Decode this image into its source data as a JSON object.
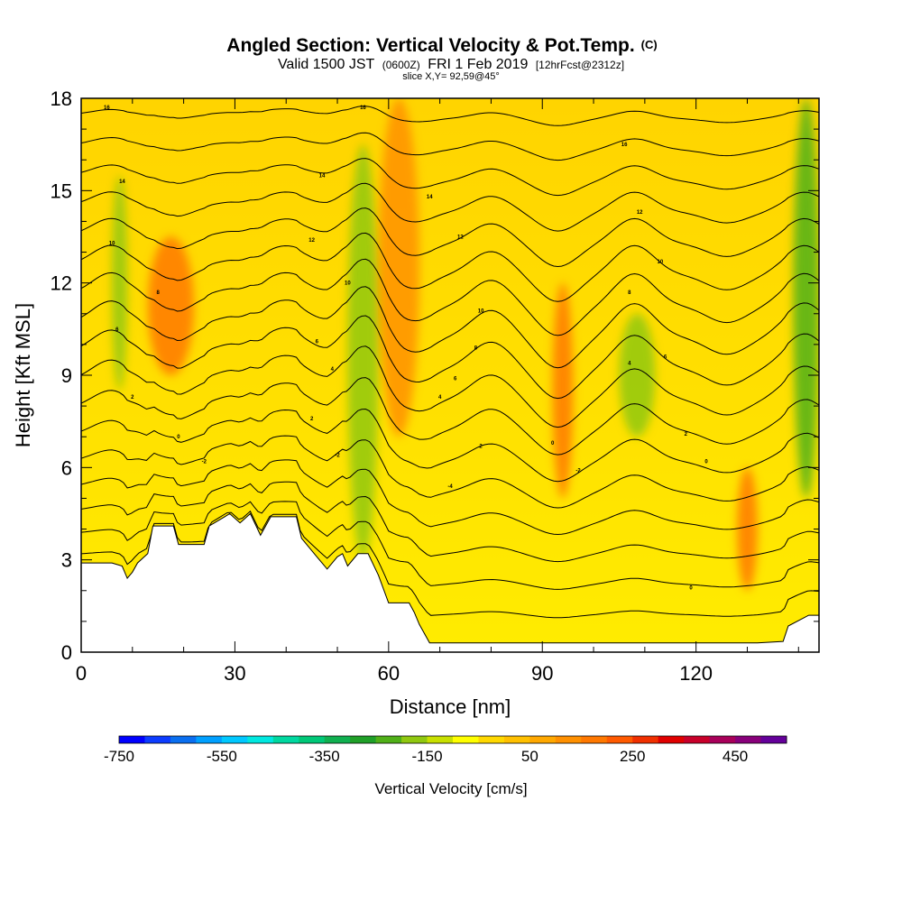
{
  "chart_data": {
    "type": "heatmap",
    "title": {
      "main": "Angled Section: Vertical Velocity & Pot.Temp.",
      "unit": "(C)",
      "valid_prefix": "Valid 1500 JST",
      "valid_zulu": "(0600Z)",
      "valid_date": "FRI 1 Feb 2019",
      "forecast": "[12hrFcst@2312z]",
      "slice": "slice X,Y= 92,59@45°"
    },
    "xlabel": "Distance [nm]",
    "ylabel": "Height [Kft MSL]",
    "xlim": [
      0,
      144
    ],
    "ylim": [
      0,
      18
    ],
    "x_ticks": [
      0,
      30,
      60,
      90,
      120
    ],
    "y_ticks": [
      0,
      3,
      6,
      9,
      12,
      15,
      18
    ],
    "colorbar": {
      "title": "Vertical Velocity [cm/s]",
      "min": -750,
      "max": 550,
      "step": 50,
      "labels": [
        "-750",
        "-550",
        "-350",
        "-150",
        "50",
        "250",
        "450"
      ],
      "colors": [
        "#0000ff",
        "#0c3cff",
        "#0a6ff0",
        "#00a0ff",
        "#00c8ff",
        "#00e8e0",
        "#00d8a0",
        "#00c878",
        "#10b050",
        "#20a028",
        "#50b018",
        "#90c810",
        "#c8e000",
        "#ffff00",
        "#ffd800",
        "#ffc000",
        "#ffa800",
        "#ff9000",
        "#ff7800",
        "#ff5a00",
        "#f03000",
        "#e00000",
        "#c8002a",
        "#a8005a",
        "#88007a",
        "#64009a"
      ]
    },
    "terrain_kft": [
      [
        0,
        2.9
      ],
      [
        6,
        2.9
      ],
      [
        6,
        2.9
      ],
      [
        8,
        2.8
      ],
      [
        9,
        2.4
      ],
      [
        10,
        2.6
      ],
      [
        11,
        2.9
      ],
      [
        13,
        3.2
      ],
      [
        14,
        4.1
      ],
      [
        18,
        4.1
      ],
      [
        19,
        3.5
      ],
      [
        24,
        3.5
      ],
      [
        25,
        4.1
      ],
      [
        28,
        4.4
      ],
      [
        29,
        4.5
      ],
      [
        31,
        4.2
      ],
      [
        33,
        4.5
      ],
      [
        35,
        3.8
      ],
      [
        37,
        4.4
      ],
      [
        42,
        4.4
      ],
      [
        43,
        3.7
      ],
      [
        45,
        3.3
      ],
      [
        46,
        3.1
      ],
      [
        47,
        2.9
      ],
      [
        48,
        2.7
      ],
      [
        50,
        3.1
      ],
      [
        51,
        3.2
      ],
      [
        52,
        2.8
      ],
      [
        54,
        3.2
      ],
      [
        56,
        3.2
      ],
      [
        58,
        2.5
      ],
      [
        60,
        1.6
      ],
      [
        64,
        1.6
      ],
      [
        65,
        1.3
      ],
      [
        66,
        0.9
      ],
      [
        67,
        0.6
      ],
      [
        68,
        0.3
      ],
      [
        70,
        0.3
      ],
      [
        132,
        0.3
      ],
      [
        137,
        0.35
      ],
      [
        138,
        0.85
      ],
      [
        142,
        1.2
      ],
      [
        144,
        1.2
      ]
    ],
    "w_fields": [
      {
        "type": "updraft",
        "x": [
          6,
          9
        ],
        "z": [
          8.5,
          15.5
        ],
        "w_cm_s": -180
      },
      {
        "type": "downdraft",
        "x": [
          13,
          22
        ],
        "z": [
          9,
          13.5
        ],
        "w_cm_s": 150
      },
      {
        "type": "updraft",
        "x": [
          52,
          58
        ],
        "z": [
          3,
          16.5
        ],
        "w_cm_s": -200
      },
      {
        "type": "downdraft",
        "x": [
          58,
          66
        ],
        "z": [
          7,
          18
        ],
        "w_cm_s": 140
      },
      {
        "type": "updraft",
        "x": [
          105,
          112
        ],
        "z": [
          7,
          11
        ],
        "w_cm_s": -160
      },
      {
        "type": "downdraft",
        "x": [
          92,
          96
        ],
        "z": [
          5,
          12
        ],
        "w_cm_s": 160
      },
      {
        "type": "updraft",
        "x": [
          139,
          144
        ],
        "z": [
          5,
          18
        ],
        "w_cm_s": -220
      },
      {
        "type": "downdraft",
        "x": [
          128,
          132
        ],
        "z": [
          2,
          6
        ],
        "w_cm_s": 150
      }
    ],
    "theta_contour_labels": [
      {
        "x": 5,
        "z": 17.7,
        "text": "16"
      },
      {
        "x": 55,
        "z": 17.7,
        "text": "16"
      },
      {
        "x": 106,
        "z": 16.5,
        "text": "16"
      },
      {
        "x": 8,
        "z": 15.3,
        "text": "14"
      },
      {
        "x": 47,
        "z": 15.5,
        "text": "14"
      },
      {
        "x": 68,
        "z": 14.8,
        "text": "14"
      },
      {
        "x": 109,
        "z": 14.3,
        "text": "12"
      },
      {
        "x": 6,
        "z": 13.3,
        "text": "10"
      },
      {
        "x": 45,
        "z": 13.4,
        "text": "12"
      },
      {
        "x": 74,
        "z": 13.5,
        "text": "12"
      },
      {
        "x": 113,
        "z": 12.7,
        "text": "10"
      },
      {
        "x": 15,
        "z": 11.7,
        "text": "8"
      },
      {
        "x": 52,
        "z": 12.0,
        "text": "10"
      },
      {
        "x": 78,
        "z": 11.1,
        "text": "10"
      },
      {
        "x": 107,
        "z": 11.7,
        "text": "8"
      },
      {
        "x": 7,
        "z": 10.5,
        "text": "6"
      },
      {
        "x": 46,
        "z": 10.1,
        "text": "6"
      },
      {
        "x": 77,
        "z": 9.9,
        "text": "8"
      },
      {
        "x": 114,
        "z": 9.6,
        "text": "6"
      },
      {
        "x": 49,
        "z": 9.2,
        "text": "4"
      },
      {
        "x": 73,
        "z": 8.9,
        "text": "6"
      },
      {
        "x": 107,
        "z": 9.4,
        "text": "4"
      },
      {
        "x": 10,
        "z": 8.3,
        "text": "2"
      },
      {
        "x": 70,
        "z": 8.3,
        "text": "4"
      },
      {
        "x": 45,
        "z": 7.6,
        "text": "2"
      },
      {
        "x": 19,
        "z": 7.0,
        "text": "0"
      },
      {
        "x": 118,
        "z": 7.1,
        "text": "2"
      },
      {
        "x": 24,
        "z": 6.2,
        "text": "-2"
      },
      {
        "x": 78,
        "z": 6.7,
        "text": "2"
      },
      {
        "x": 92,
        "z": 6.8,
        "text": "0"
      },
      {
        "x": 50,
        "z": 6.4,
        "text": "-2"
      },
      {
        "x": 122,
        "z": 6.2,
        "text": "0"
      },
      {
        "x": 97,
        "z": 5.9,
        "text": "-2"
      },
      {
        "x": 72,
        "z": 5.4,
        "text": "-4"
      },
      {
        "x": 119,
        "z": 2.1,
        "text": "0"
      }
    ],
    "theta_levels_c": [
      -8,
      -6,
      -4,
      -2,
      0,
      2,
      4,
      6,
      8,
      10,
      12,
      14,
      16,
      18,
      20
    ]
  }
}
